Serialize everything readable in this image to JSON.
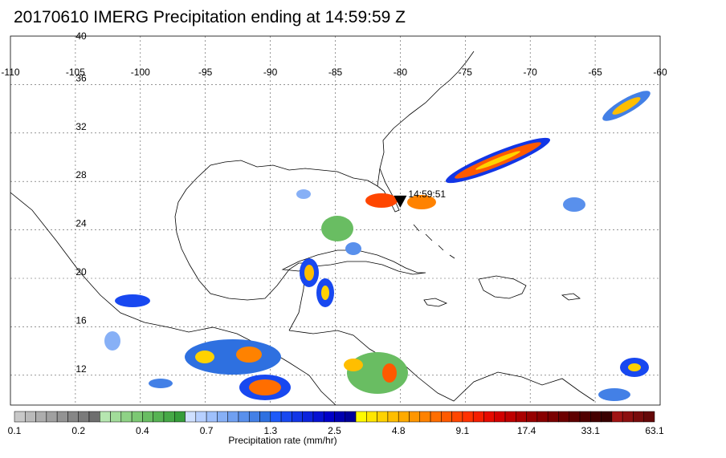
{
  "title": "20170610 IMERG Precipitation ending at 14:59:59 Z",
  "map": {
    "lon_ticks": [
      -110,
      -105,
      -100,
      -95,
      -90,
      -85,
      -80,
      -75,
      -70,
      -65,
      -60
    ],
    "lat_ticks": [
      40,
      36,
      32,
      28,
      24,
      20,
      16,
      12
    ],
    "marker_label": "14:59:51",
    "marker_lon": -80,
    "marker_lat": 26.3
  },
  "colorbar": {
    "label": "Precipitation rate (mm/hr)",
    "tick_labels": [
      "0.1",
      "0.2",
      "0.4",
      "0.7",
      "1.3",
      "2.5",
      "4.8",
      "9.1",
      "17.4",
      "33.1",
      "63.1"
    ],
    "colors": [
      "#c8c8c8",
      "#bababa",
      "#adadad",
      "#a0a0a0",
      "#939393",
      "#868686",
      "#7a7a7a",
      "#6e6e6e",
      "#b6e6b0",
      "#a2dc9a",
      "#8fd286",
      "#7cc873",
      "#69bd62",
      "#57b353",
      "#46a846",
      "#369d3a",
      "#cfe0ff",
      "#b7d0ff",
      "#9fc0fb",
      "#87b0f6",
      "#70a0f1",
      "#5990ec",
      "#4380e6",
      "#2e70e0",
      "#1e5af8",
      "#1848f0",
      "#1236e6",
      "#0c24dc",
      "#0612d2",
      "#0000c8",
      "#0000b0",
      "#000098",
      "#fffa00",
      "#ffe600",
      "#ffd200",
      "#ffbe00",
      "#ffaa00",
      "#ff9600",
      "#ff8200",
      "#ff6e00",
      "#ff5a00",
      "#ff4600",
      "#ff3200",
      "#f51e00",
      "#e60a00",
      "#d20000",
      "#be0000",
      "#aa0000",
      "#960000",
      "#880000",
      "#7a0000",
      "#6c0000",
      "#5e0000",
      "#500000",
      "#440000",
      "#380000",
      "#a01414",
      "#8c1010",
      "#780c0c",
      "#640808"
    ]
  }
}
